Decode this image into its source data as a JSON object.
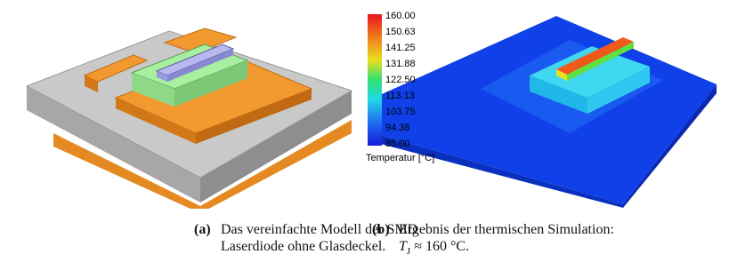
{
  "figure": {
    "panel_a": {
      "label": "(a)",
      "caption_lines": [
        "Das vereinfachte Modell der SMD",
        "Laserdiode ohne Glasdeckel."
      ]
    },
    "panel_b": {
      "label": "(b)",
      "caption_line1": "Ergebnis der thermischen Simulation:",
      "caption_symbol": "T",
      "caption_subscript": "J",
      "caption_relation": "≈ 160 °C.",
      "colorbar": {
        "labels": [
          "160.00",
          "150.63",
          "141.25",
          "131.88",
          "122.50",
          "113.13",
          "103.75",
          "94.38",
          "85.00"
        ],
        "title": "Temperatur [°C]"
      }
    }
  }
}
